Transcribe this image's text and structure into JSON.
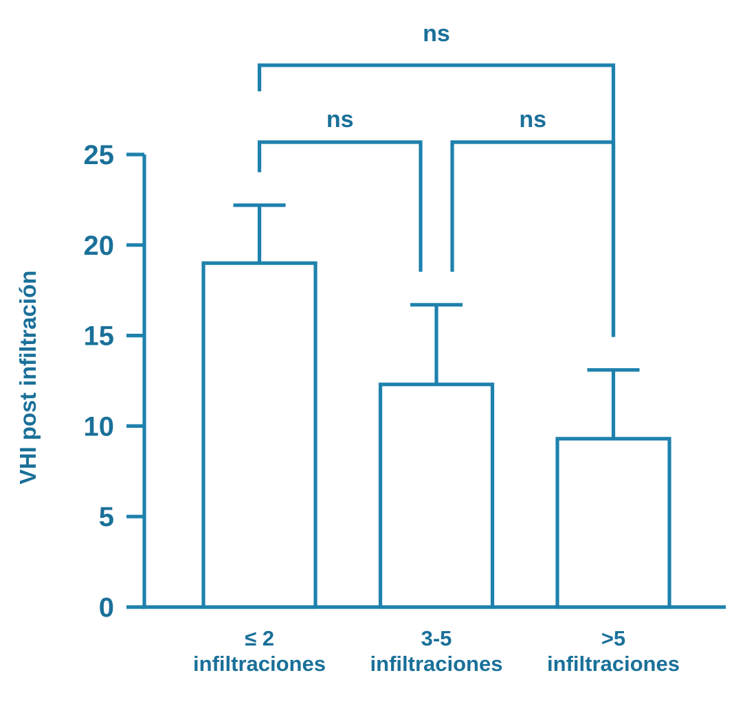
{
  "figure": {
    "background": "#ffffff"
  },
  "colors": {
    "accent": "#1e81ad",
    "text": "#1a7099"
  },
  "chart_data": {
    "type": "bar",
    "title": "",
    "xlabel": "",
    "ylabel": "VHI post infiltración",
    "ylim": [
      0,
      25
    ],
    "yticks": [
      0,
      5,
      10,
      15,
      20,
      25
    ],
    "grid": false,
    "legend": false,
    "bar_fill": "#ffffff",
    "categories": [
      {
        "line1": "≤ 2",
        "line2": "infiltraciones"
      },
      {
        "line1": "3-5",
        "line2": "infiltraciones"
      },
      {
        "line1": ">5",
        "line2": "infiltraciones"
      }
    ],
    "series": [
      {
        "name": "VHI post infiltración",
        "values": [
          19.0,
          12.3,
          9.3
        ],
        "error_upper": [
          3.2,
          4.4,
          3.8
        ]
      }
    ],
    "upper_whisker_tops": [
      22.2,
      16.7,
      13.1
    ],
    "significance": [
      {
        "pair": [
          0,
          1
        ],
        "label": "ns",
        "level": 1
      },
      {
        "pair": [
          1,
          2
        ],
        "label": "ns",
        "level": 1
      },
      {
        "pair": [
          0,
          2
        ],
        "label": "ns",
        "level": 2
      }
    ]
  }
}
